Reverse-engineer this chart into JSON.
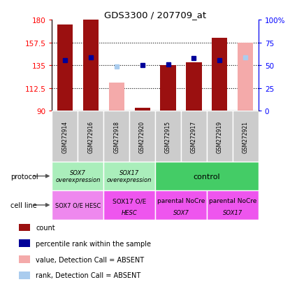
{
  "title": "GDS3300 / 207709_at",
  "samples": [
    "GSM272914",
    "GSM272916",
    "GSM272918",
    "GSM272920",
    "GSM272915",
    "GSM272917",
    "GSM272919",
    "GSM272921"
  ],
  "ylim_left": [
    90,
    180
  ],
  "ylim_right": [
    0,
    100
  ],
  "yticks_left": [
    90,
    112.5,
    135,
    157.5,
    180
  ],
  "yticks_right": [
    0,
    25,
    50,
    75,
    100
  ],
  "ytick_labels_left": [
    "90",
    "112.5",
    "135",
    "157.5",
    "180"
  ],
  "ytick_labels_right": [
    "0",
    "25",
    "50",
    "75",
    "100%"
  ],
  "bar_values_red": [
    175,
    180,
    null,
    93,
    135,
    138,
    162,
    null
  ],
  "bar_values_pink": [
    null,
    null,
    118,
    null,
    null,
    null,
    null,
    157
  ],
  "dot_values_blue": [
    140,
    143,
    null,
    135,
    136,
    142,
    140,
    null
  ],
  "dot_values_lightblue": [
    null,
    null,
    134,
    null,
    null,
    null,
    null,
    143
  ],
  "bar_color_red": "#9B1010",
  "bar_color_pink": "#F4AAAA",
  "dot_color_blue": "#000099",
  "dot_color_lightblue": "#AACCEE",
  "hlines": [
    112.5,
    135,
    157.5
  ],
  "protocol_groups": [
    {
      "label": "SOX7\noverexpression",
      "start": 0,
      "end": 2,
      "color": "#AAEEBB"
    },
    {
      "label": "SOX17\noverexpression",
      "start": 2,
      "end": 4,
      "color": "#AAEEBB"
    },
    {
      "label": "control",
      "start": 4,
      "end": 8,
      "color": "#44CC66"
    }
  ],
  "cellline_groups": [
    {
      "label": "SOX7 O/E HESC",
      "start": 0,
      "end": 2,
      "color": "#EE88EE"
    },
    {
      "label": "SOX17 O/E\nHESC",
      "start": 2,
      "end": 4,
      "color": "#EE55EE"
    },
    {
      "label": "parental NoCre\nSOX7",
      "start": 4,
      "end": 6,
      "color": "#EE55EE"
    },
    {
      "label": "parental NoCre\nSOX17",
      "start": 6,
      "end": 8,
      "color": "#EE55EE"
    }
  ],
  "legend_items": [
    {
      "label": "count",
      "color": "#9B1010"
    },
    {
      "label": "percentile rank within the sample",
      "color": "#000099"
    },
    {
      "label": "value, Detection Call = ABSENT",
      "color": "#F4AAAA"
    },
    {
      "label": "rank, Detection Call = ABSENT",
      "color": "#AACCEE"
    }
  ],
  "bar_width": 0.6
}
